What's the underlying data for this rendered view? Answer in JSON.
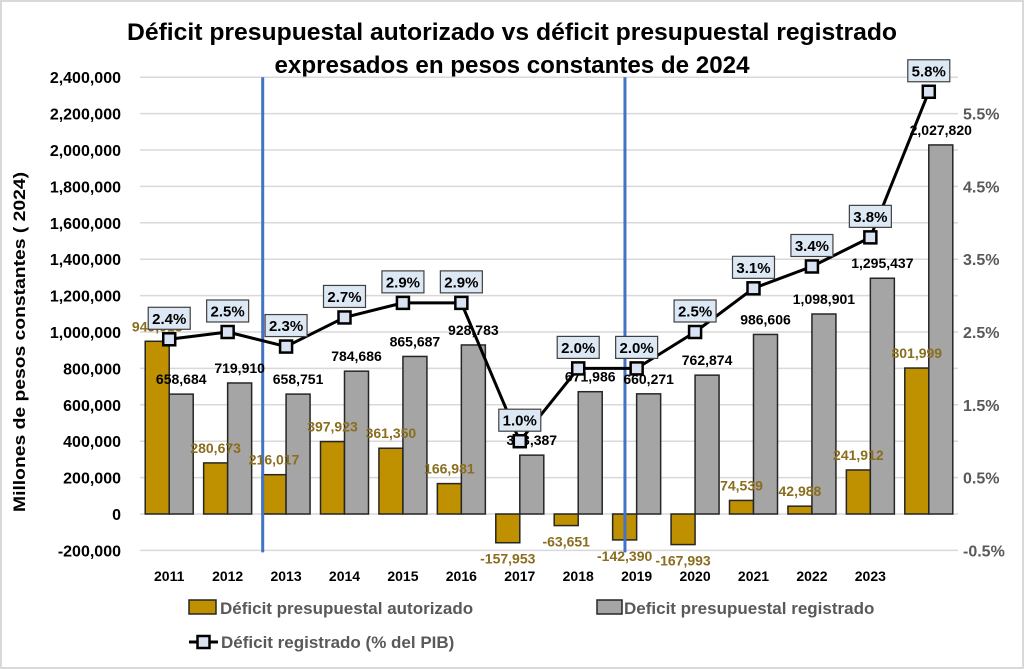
{
  "chart_data": {
    "type": "bar",
    "title": "Déficit presupuestal autorizado vs déficit presupuestal registrado expresados en pesos constantes de 2024",
    "title_lines": [
      "Déficit presupuestal autorizado vs déficit presupuestal registrado",
      "expresados en pesos constantes de 2024"
    ],
    "xlabel": "",
    "ylabel": "Millones de pesos constantes ( 2024)",
    "y2label": "",
    "categories": [
      "2011",
      "2012",
      "2013",
      "2014",
      "2015",
      "2016",
      "2017",
      "2018",
      "2019",
      "2020",
      "2021",
      "2022",
      "2023",
      ""
    ],
    "ylim": [
      -200000,
      2400000
    ],
    "y_ticks": [
      -200000,
      0,
      200000,
      400000,
      600000,
      800000,
      1000000,
      1200000,
      1400000,
      1600000,
      1800000,
      2000000,
      2200000,
      2400000
    ],
    "y_tick_labels": [
      "-200,000",
      "0",
      "200,000",
      "400,000",
      "600,000",
      "800,000",
      "1,000,000",
      "1,200,000",
      "1,400,000",
      "1,600,000",
      "1,800,000",
      "2,000,000",
      "2,200,000",
      "2,400,000"
    ],
    "y2lim": [
      -0.5,
      6.0
    ],
    "y2_ticks": [
      -0.5,
      0.5,
      1.5,
      2.5,
      3.5,
      4.5,
      5.5
    ],
    "y2_tick_labels": [
      "-0.5%",
      "0.5%",
      "1.5%",
      "2.5%",
      "3.5%",
      "4.5%",
      "5.5%"
    ],
    "grid": true,
    "legend": {
      "position": "bottom",
      "entries": [
        "Déficit presupuestal autorizado",
        "Deficit presupuestal registrado",
        "Déficit registrado (% del PIB)"
      ]
    },
    "series": [
      {
        "name": "Déficit presupuestal autorizado",
        "type": "bar",
        "axis": "left",
        "color": "#BF9000",
        "label_color": "#8A6D1E",
        "values": [
          949013,
          280673,
          216017,
          397923,
          361350,
          166981,
          -157953,
          -63651,
          -142390,
          -167993,
          74539,
          42988,
          241912,
          801999
        ],
        "labels": [
          "949,013",
          "280,673",
          "216,017",
          "397,923",
          "361,350",
          "166,981",
          "-157,953",
          "-63,651",
          "-142,390",
          "-167,993",
          "74,539",
          "42,988",
          "241,912",
          "801,999"
        ]
      },
      {
        "name": "Deficit presupuestal registrado",
        "type": "bar",
        "axis": "left",
        "color": "#A5A5A5",
        "label_color": "#000000",
        "values": [
          658684,
          719910,
          658751,
          784686,
          865687,
          928783,
          323387,
          671986,
          660271,
          762874,
          986606,
          1098901,
          1295437,
          2027820
        ],
        "labels": [
          "658,684",
          "719,910",
          "658,751",
          "784,686",
          "865,687",
          "928,783",
          "323,387",
          "671,986",
          "660,271",
          "762,874",
          "986,606",
          "1,098,901",
          "1,295,437",
          "2,027,820"
        ]
      },
      {
        "name": "Déficit registrado (% del PIB)",
        "type": "line",
        "axis": "right",
        "color": "#000000",
        "marker_fill": "#DAE3F3",
        "values": [
          2.4,
          2.5,
          2.3,
          2.7,
          2.9,
          2.9,
          1.0,
          2.0,
          2.0,
          2.5,
          3.1,
          3.4,
          3.8,
          5.8
        ],
        "labels": [
          "2.4%",
          "2.5%",
          "2.3%",
          "2.7%",
          "2.9%",
          "2.9%",
          "1.0%",
          "2.0%",
          "2.0%",
          "2.5%",
          "3.1%",
          "3.4%",
          "3.8%",
          "5.8%"
        ]
      }
    ],
    "annotations": {
      "vertical_lines": [
        {
          "x_category_index": 1.6,
          "color": "#4472C4"
        },
        {
          "x_category_index": 7.8,
          "color": "#4472C4"
        }
      ]
    }
  }
}
